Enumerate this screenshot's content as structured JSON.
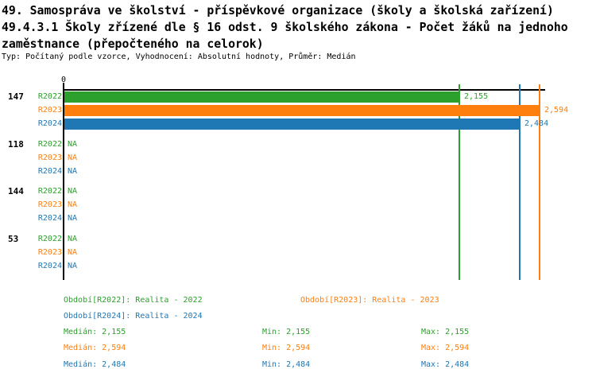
{
  "page": {
    "title_lines": [
      "49. Samospráva ve školství - příspěvkové organizace (školy a školská zařízení)",
      "49.4.3.1 Školy zřízené dle § 16 odst. 9 školského zákona - Počet žáků na jednoho",
      "zaměstnance (přepočteného na celorok)"
    ],
    "subtitle": "Typ: Počítaný podle vzorce, Vyhodnocení: Absolutní hodnoty, Průměr: Medián"
  },
  "colors": {
    "r2022_green": "#2ca02c",
    "r2023_orange": "#ff7f0e",
    "r2024_blue": "#1f77b4",
    "axis_black": "#000000",
    "background": "#ffffff"
  },
  "chart_data": {
    "type": "bar",
    "orientation": "horizontal",
    "x_zero_label": "0",
    "xlim": [
      0,
      2.62
    ],
    "grid": "median-reference-lines-only",
    "legend_position": "bottom",
    "na_text": "NA",
    "categories": [
      "147",
      "118",
      "144",
      "53"
    ],
    "series": [
      {
        "name": "R2022",
        "color": "#2ca02c",
        "values": [
          2.155,
          null,
          null,
          null
        ],
        "value_labels": [
          "2,155",
          "NA",
          "NA",
          "NA"
        ],
        "median": 2.155
      },
      {
        "name": "R2023",
        "color": "#ff7f0e",
        "values": [
          2.594,
          null,
          null,
          null
        ],
        "value_labels": [
          "2,594",
          "NA",
          "NA",
          "NA"
        ],
        "median": 2.594
      },
      {
        "name": "R2024",
        "color": "#1f77b4",
        "values": [
          2.484,
          null,
          null,
          null
        ],
        "value_labels": [
          "2,484",
          "NA",
          "NA",
          "NA"
        ],
        "median": 2.484
      }
    ]
  },
  "legend": {
    "period_labels": [
      {
        "series": "R2022",
        "text": "Období[R2022]: Realita - 2022"
      },
      {
        "series": "R2023",
        "text": "Období[R2023]: Realita - 2023"
      },
      {
        "series": "R2024",
        "text": "Období[R2024]: Realita - 2024"
      }
    ],
    "stats": [
      {
        "series": "R2022",
        "median": "Medián: 2,155",
        "min": "Min: 2,155",
        "max": "Max: 2,155"
      },
      {
        "series": "R2023",
        "median": "Medián: 2,594",
        "min": "Min: 2,594",
        "max": "Max: 2,594"
      },
      {
        "series": "R2024",
        "median": "Medián: 2,484",
        "min": "Min: 2,484",
        "max": "Max: 2,484"
      }
    ]
  }
}
